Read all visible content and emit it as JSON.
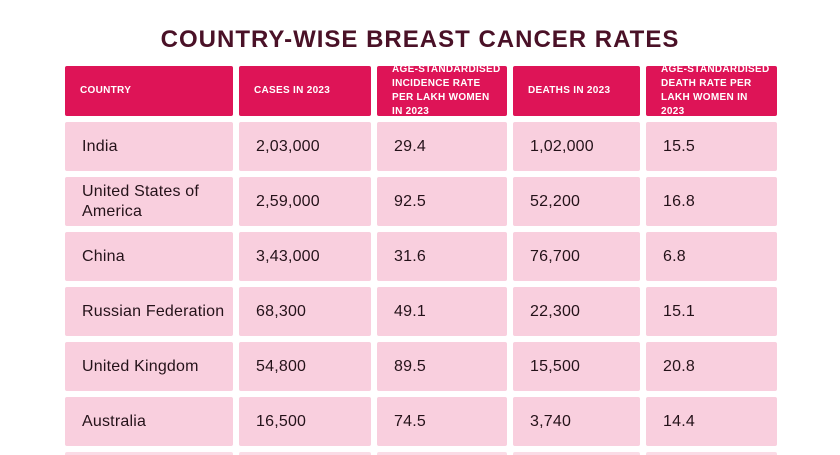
{
  "title": "COUNTRY-WISE BREAST CANCER RATES",
  "colors": {
    "background": "#ffffff",
    "title_text": "#4a1127",
    "header_bg": "#de1457",
    "header_text": "#ffffff",
    "row_bg": "#f9cfde",
    "cell_text": "#241219"
  },
  "table": {
    "columns": [
      {
        "label": "COUNTRY"
      },
      {
        "label": "CASES IN 2023"
      },
      {
        "label": "AGE-STANDARDISED INCIDENCE RATE PER LAKH WOMEN IN 2023"
      },
      {
        "label": "DEATHS IN 2023"
      },
      {
        "label": "AGE-STANDARDISED DEATH RATE PER LAKH WOMEN IN 2023"
      }
    ],
    "rows": [
      {
        "country": "India",
        "cases": "2,03,000",
        "incidence_rate": "29.4",
        "deaths": "1,02,000",
        "death_rate": "15.5"
      },
      {
        "country": "United States of America",
        "cases": "2,59,000",
        "incidence_rate": "92.5",
        "deaths": "52,200",
        "death_rate": "16.8"
      },
      {
        "country": "China",
        "cases": "3,43,000",
        "incidence_rate": "31.6",
        "deaths": "76,700",
        "death_rate": "6.8"
      },
      {
        "country": "Russian Federation",
        "cases": "68,300",
        "incidence_rate": "49.1",
        "deaths": "22,300",
        "death_rate": "15.1"
      },
      {
        "country": "United Kingdom",
        "cases": "54,800",
        "incidence_rate": "89.5",
        "deaths": "15,500",
        "death_rate": "20.8"
      },
      {
        "country": "Australia",
        "cases": "16,500",
        "incidence_rate": "74.5",
        "deaths": "3,740",
        "death_rate": "14.4"
      }
    ]
  },
  "chart_data": {
    "type": "table",
    "title": "COUNTRY-WISE BREAST CANCER RATES",
    "columns": [
      "COUNTRY",
      "CASES IN 2023",
      "AGE-STANDARDISED INCIDENCE RATE PER LAKH WOMEN IN 2023",
      "DEATHS IN 2023",
      "AGE-STANDARDISED DEATH RATE PER LAKH WOMEN IN 2023"
    ],
    "rows": [
      [
        "India",
        "2,03,000",
        "29.4",
        "1,02,000",
        "15.5"
      ],
      [
        "United States of America",
        "2,59,000",
        "92.5",
        "52,200",
        "16.8"
      ],
      [
        "China",
        "3,43,000",
        "31.6",
        "76,700",
        "6.8"
      ],
      [
        "Russian Federation",
        "68,300",
        "49.1",
        "22,300",
        "15.1"
      ],
      [
        "United Kingdom",
        "54,800",
        "89.5",
        "15,500",
        "20.8"
      ],
      [
        "Australia",
        "16,500",
        "74.5",
        "3,740",
        "14.4"
      ]
    ]
  }
}
